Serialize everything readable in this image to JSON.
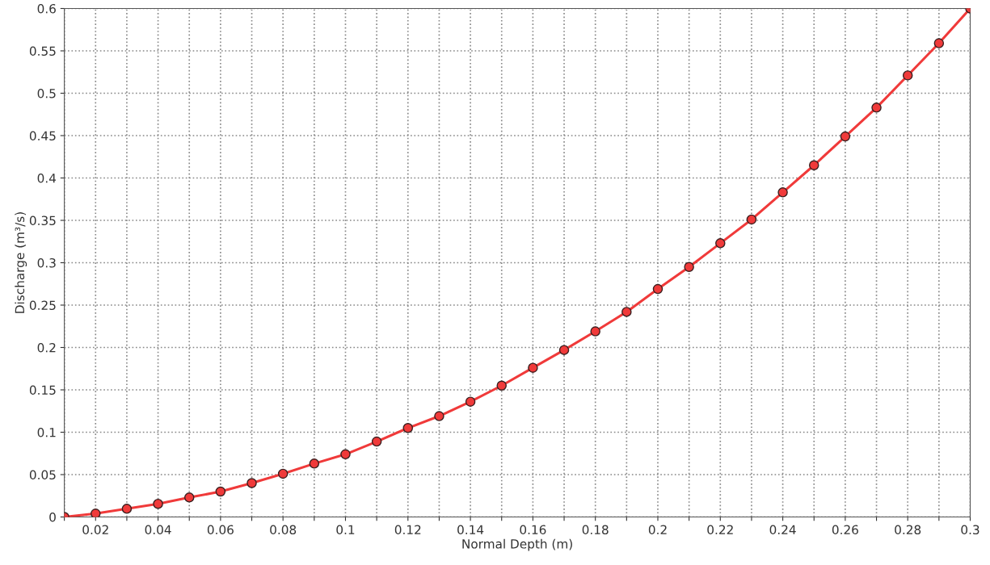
{
  "chart_data": {
    "type": "line",
    "xlabel": "Normal Depth (m)",
    "ylabel": "Discharge (m³/s)",
    "x": [
      0.01,
      0.02,
      0.03,
      0.04,
      0.05,
      0.06,
      0.07,
      0.08,
      0.09,
      0.1,
      0.11,
      0.12,
      0.13,
      0.14,
      0.15,
      0.16,
      0.17,
      0.18,
      0.19,
      0.2,
      0.21,
      0.22,
      0.23,
      0.24,
      0.25,
      0.26,
      0.27,
      0.28,
      0.29,
      0.3
    ],
    "series": [
      {
        "color": "#f03a3a",
        "values": [
          0,
          0.004,
          0.0097,
          0.0155,
          0.023,
          0.03,
          0.04,
          0.051,
          0.063,
          0.074,
          0.089,
          0.105,
          0.119,
          0.136,
          0.155,
          0.176,
          0.197,
          0.219,
          0.242,
          0.269,
          0.295,
          0.323,
          0.351,
          0.383,
          0.415,
          0.449,
          0.483,
          0.521,
          0.559,
          0.6
        ]
      }
    ],
    "xlim": [
      0.01,
      0.3
    ],
    "ylim": [
      0,
      0.6
    ],
    "xticks": [
      {
        "value": 0.01,
        "label": null
      },
      0.02,
      {
        "value": 0.03,
        "label": null
      },
      0.04,
      {
        "value": 0.05,
        "label": null
      },
      0.06,
      {
        "value": 0.07,
        "label": null
      },
      0.08,
      {
        "value": 0.09,
        "label": null
      },
      0.1,
      {
        "value": 0.11,
        "label": null
      },
      0.12,
      {
        "value": 0.13,
        "label": null
      },
      0.14,
      {
        "value": 0.15,
        "label": null
      },
      0.16,
      {
        "value": 0.17,
        "label": null
      },
      0.18,
      {
        "value": 0.19,
        "label": null
      },
      0.2,
      {
        "value": 0.21,
        "label": null
      },
      0.22,
      {
        "value": 0.23,
        "label": null
      },
      0.24,
      {
        "value": 0.25,
        "label": null
      },
      0.26,
      {
        "value": 0.27,
        "label": null
      },
      0.28,
      {
        "value": 0.29,
        "label": null
      },
      0.3
    ],
    "yticks": [
      0,
      0.05,
      0.1,
      0.15,
      0.2,
      0.25,
      0.3,
      0.35,
      0.4,
      0.45,
      0.5,
      0.55,
      0.6
    ],
    "grid": true,
    "marker": "circle",
    "line_style": "solid"
  }
}
